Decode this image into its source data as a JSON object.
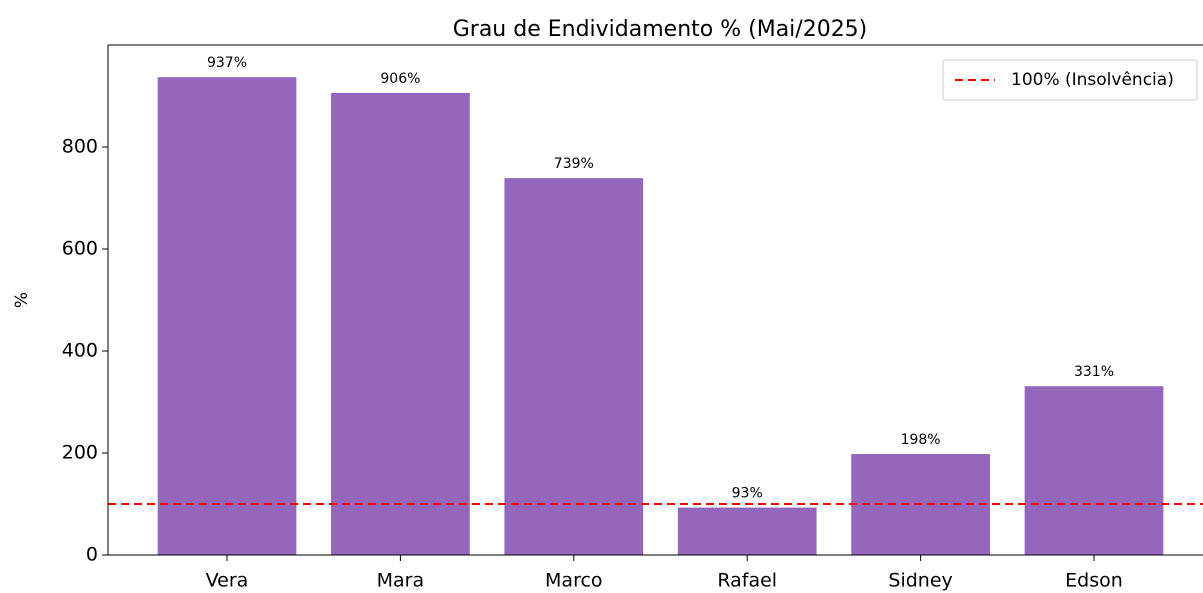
{
  "chart_data": {
    "type": "bar",
    "title": "Grau de Endividamento % (Mai/2025)",
    "ylabel": "%",
    "categories": [
      "Vera",
      "Mara",
      "Marco",
      "Rafael",
      "Sidney",
      "Edson"
    ],
    "values": [
      937,
      906,
      739,
      93,
      198,
      331
    ],
    "value_labels": [
      "937%",
      "906%",
      "739%",
      "93%",
      "198%",
      "331%"
    ],
    "color": "#9467bd",
    "ylim": [
      0,
      1000
    ],
    "yticks": [
      0,
      200,
      400,
      600,
      800
    ],
    "reference_line": {
      "value": 100,
      "label": "100% (Insolvência)",
      "color": "#ff0000"
    },
    "legend": "upper right"
  }
}
